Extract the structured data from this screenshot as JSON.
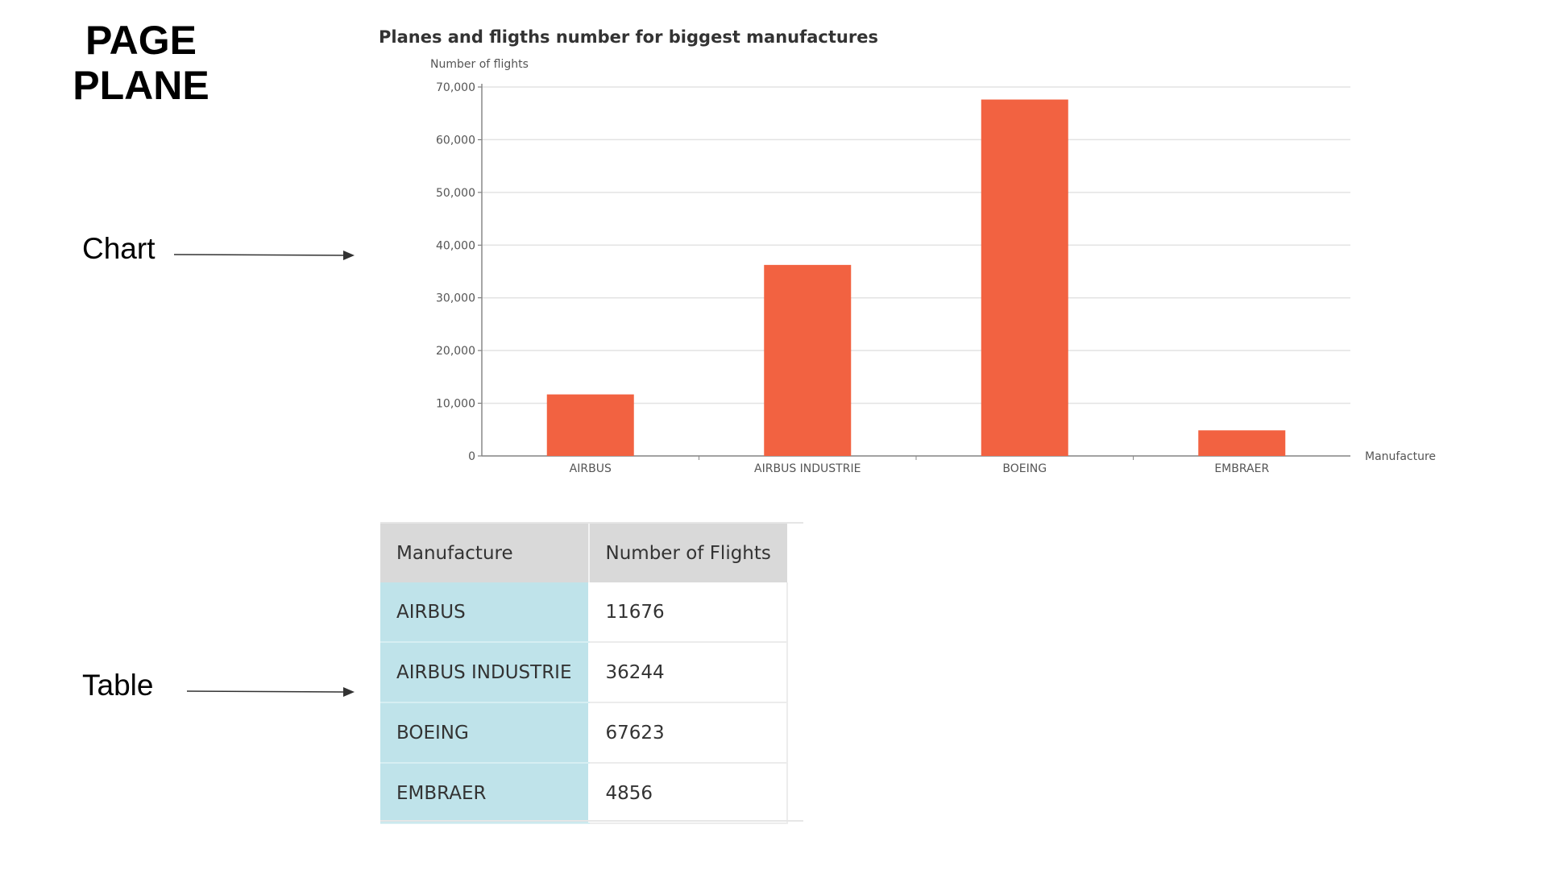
{
  "page": {
    "title_line1": "PAGE",
    "title_line2": "PLANE"
  },
  "callouts": {
    "chart_label": "Chart",
    "table_label": "Table"
  },
  "colors": {
    "bar": "#f26241",
    "table_header_bg": "#d9d9d9",
    "table_row_header_bg": "#bfe3ea"
  },
  "chart_data": {
    "type": "bar",
    "title": "Planes and fligths number for biggest manufactures",
    "ylabel": "Number of flights",
    "xlabel": "Manufacture",
    "categories": [
      "AIRBUS",
      "AIRBUS INDUSTRIE",
      "BOEING",
      "EMBRAER"
    ],
    "values": [
      11676,
      36244,
      67623,
      4856
    ],
    "ylim": [
      0,
      70000
    ],
    "yticks": [
      0,
      10000,
      20000,
      30000,
      40000,
      50000,
      60000,
      70000
    ],
    "ytick_labels": [
      "0",
      "10,000",
      "20,000",
      "30,000",
      "40,000",
      "50,000",
      "60,000",
      "70,000"
    ],
    "grid": true,
    "legend": "none"
  },
  "table": {
    "headers": [
      "Manufacture",
      "Number of Flights"
    ],
    "rows": [
      {
        "manufacture": "AIRBUS",
        "flights": "11676"
      },
      {
        "manufacture": "AIRBUS INDUSTRIE",
        "flights": "36244"
      },
      {
        "manufacture": "BOEING",
        "flights": "67623"
      },
      {
        "manufacture": "EMBRAER",
        "flights": "4856"
      }
    ]
  }
}
